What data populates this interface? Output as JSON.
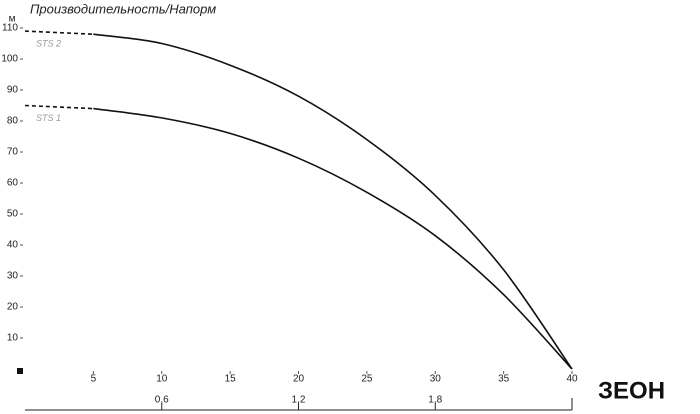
{
  "chart_data": {
    "type": "line",
    "title": "Производительность/Напорм",
    "y_unit": "м",
    "x": [
      0,
      5,
      10,
      15,
      20,
      25,
      30,
      35,
      40
    ],
    "series": [
      {
        "name": "STS 2",
        "color": "#111111",
        "values": [
          109,
          108,
          105,
          98,
          88,
          74,
          56,
          32,
          0
        ]
      },
      {
        "name": "STS 1",
        "color": "#111111",
        "values": [
          85,
          84,
          81,
          76,
          68,
          57,
          43,
          24,
          0
        ]
      }
    ],
    "dash_until_x": 5,
    "xlim": [
      0,
      40
    ],
    "xticks": [
      5,
      10,
      15,
      20,
      25,
      30,
      35,
      40
    ],
    "ylim": [
      0,
      110
    ],
    "yticks": [
      10,
      20,
      30,
      40,
      50,
      60,
      70,
      80,
      90,
      100,
      110
    ],
    "x2lim": [
      0,
      2.4
    ],
    "x2ticks": [
      {
        "value": 0.6,
        "label": "0,6"
      },
      {
        "value": 1.2,
        "label": "1,2"
      },
      {
        "value": 1.8,
        "label": "1,8"
      }
    ],
    "logo": "ЗЕОН"
  }
}
